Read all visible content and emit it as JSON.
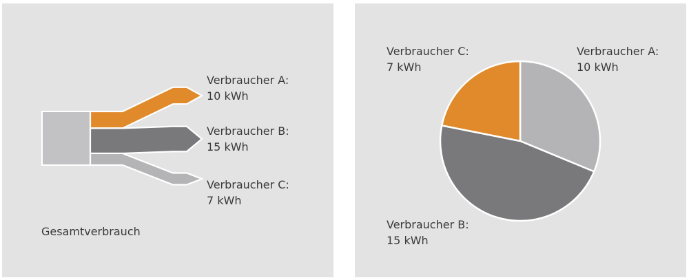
{
  "colors": {
    "background": "#e3e3e4",
    "consumer_a": "#e08a2b",
    "consumer_b": "#79797b",
    "consumer_c": "#b4b4b6",
    "total": "#c2c2c4",
    "outline": "#ffffff",
    "text": "#3a3a3a"
  },
  "chart_data": [
    {
      "type": "sankey",
      "title": "",
      "source": {
        "label": "Gesamtverbrauch",
        "value": 32
      },
      "flows": [
        {
          "name": "Verbraucher A:",
          "value": 10,
          "unit": "kWh",
          "value_label": "10 kWh",
          "color": "#e08a2b"
        },
        {
          "name": "Verbraucher B:",
          "value": 15,
          "unit": "kWh",
          "value_label": "15 kWh",
          "color": "#79797b"
        },
        {
          "name": "Verbraucher C:",
          "value": 7,
          "unit": "kWh",
          "value_label": "7 kWh",
          "color": "#b4b4b6"
        }
      ]
    },
    {
      "type": "pie",
      "title": "",
      "slices": [
        {
          "name": "Verbraucher A:",
          "value": 10,
          "unit": "kWh",
          "value_label": "10 kWh",
          "color": "#b4b4b6"
        },
        {
          "name": "Verbraucher B:",
          "value": 15,
          "unit": "kWh",
          "value_label": "15 kWh",
          "color": "#79797b"
        },
        {
          "name": "Verbraucher C:",
          "value": 7,
          "unit": "kWh",
          "value_label": "7 kWh",
          "color": "#e08a2b"
        }
      ],
      "legend": "none"
    }
  ]
}
